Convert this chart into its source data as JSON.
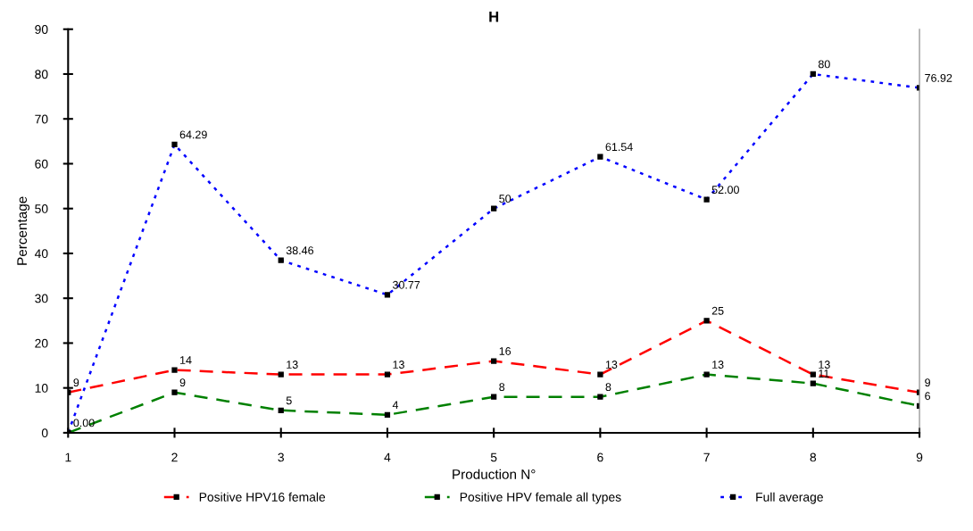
{
  "chart_data": {
    "type": "line",
    "title": "H",
    "xlabel": "Production N°",
    "ylabel": "Percentage",
    "x": [
      1,
      2,
      3,
      4,
      5,
      6,
      7,
      8,
      9
    ],
    "series": [
      {
        "name": "Positive HPV16 female",
        "color": "#ff0000",
        "line_style": "dashed",
        "values": [
          9,
          14,
          13,
          13,
          16,
          13,
          25,
          13,
          9
        ],
        "value_labels": [
          "9",
          "14",
          "13",
          "13",
          "16",
          "13",
          "25",
          "13",
          "9"
        ]
      },
      {
        "name": "Positive HPV female all types",
        "color": "#008000",
        "line_style": "dashed",
        "values": [
          0,
          9,
          5,
          4,
          8,
          8,
          13,
          11,
          6
        ],
        "value_labels": [
          null,
          "9",
          "5",
          "4",
          "8",
          "8",
          "13",
          "11",
          "6"
        ]
      },
      {
        "name": "Full average",
        "color": "#0000ff",
        "line_style": "dotted",
        "values": [
          0,
          64.29,
          38.46,
          30.77,
          50,
          61.54,
          52.0,
          80,
          76.92
        ],
        "value_labels": [
          "0.00",
          "64.29",
          "38.46",
          "30.77",
          "50",
          "61.54",
          "52.00",
          "80",
          "76.92"
        ]
      }
    ],
    "xlim": [
      1,
      9
    ],
    "xticks": [
      1,
      2,
      3,
      4,
      5,
      6,
      7,
      8,
      9
    ],
    "ylim": [
      0,
      90
    ],
    "yticks": [
      0,
      10,
      20,
      30,
      40,
      50,
      60,
      70,
      80,
      90
    ],
    "marker": "square",
    "grid": false,
    "legend": "bottom"
  }
}
